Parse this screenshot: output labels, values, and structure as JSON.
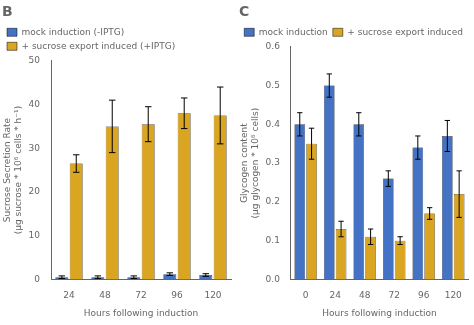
{
  "chart_data": [
    {
      "type": "bar",
      "title": "B",
      "categories": [
        24,
        48,
        72,
        96,
        120
      ],
      "series": [
        {
          "name": "mock induction (-IPTG)",
          "color": "#4472C4",
          "values": [
            0.5,
            0.5,
            0.5,
            1.2,
            1.0
          ],
          "errors": [
            0.3,
            0.3,
            0.3,
            0.3,
            0.3
          ]
        },
        {
          "name": "+ sucrose export induced (+IPTG)",
          "color": "#DAA520",
          "values": [
            26.5,
            35.0,
            35.5,
            38.0,
            37.5
          ],
          "errors": [
            2.0,
            6.0,
            4.0,
            3.5,
            6.5
          ]
        }
      ],
      "xlabel": "Hours following induction",
      "ylabel": "Sucrose Secretion Rate\n(μg sucrose * 10⁶ cells * h⁻¹)",
      "ylim": [
        0,
        50
      ],
      "yticks": [
        0,
        10,
        20,
        30,
        40,
        50
      ],
      "grid": false,
      "legend": "upper left"
    },
    {
      "type": "bar",
      "title": "C",
      "categories": [
        0,
        24,
        48,
        72,
        96,
        120
      ],
      "series": [
        {
          "name": "mock induction",
          "color": "#4472C4",
          "values": [
            0.4,
            0.5,
            0.4,
            0.26,
            0.34,
            0.37
          ],
          "errors": [
            0.03,
            0.03,
            0.03,
            0.02,
            0.03,
            0.04
          ]
        },
        {
          "name": "+ sucrose export induced",
          "color": "#DAA520",
          "values": [
            0.35,
            0.13,
            0.11,
            0.1,
            0.17,
            0.22
          ],
          "errors": [
            0.04,
            0.02,
            0.02,
            0.01,
            0.015,
            0.06
          ]
        }
      ],
      "xlabel": "Hours following induction",
      "ylabel": "Glycogen content\n(μg glycogen * 10⁶ cells)",
      "ylim": [
        0,
        0.6
      ],
      "yticks": [
        {
          "value": 0,
          "label": "0.0"
        },
        0.1,
        0.2,
        0.3,
        0.4,
        0.5,
        0.6
      ],
      "grid": false,
      "legend": "upper right"
    }
  ]
}
